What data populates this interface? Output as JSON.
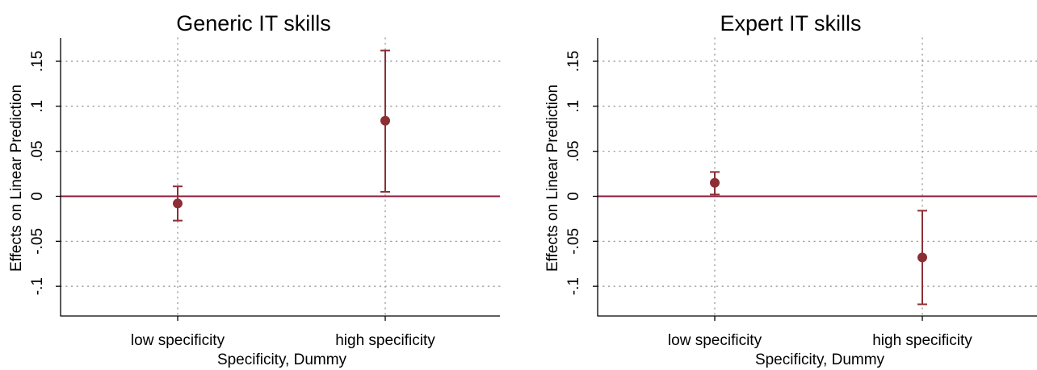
{
  "colors": {
    "marker": "#8b2f35",
    "zero_line": "#8b1a3a",
    "grid": "#8c8c8c",
    "axis": "#000000"
  },
  "chart_data": [
    {
      "type": "scatter",
      "title": "Generic IT skills",
      "xlabel": "Specificity, Dummy",
      "ylabel": "Effects on Linear Prediction",
      "categories": [
        "low specificity",
        "high specificity"
      ],
      "ytick_labels": [
        "-.1",
        "-.05",
        "0",
        ".05",
        ".1",
        ".15"
      ],
      "yticks": [
        -0.1,
        -0.05,
        0,
        0.05,
        0.1,
        0.15
      ],
      "ylim": [
        -0.133,
        0.176
      ],
      "reference_line": 0,
      "grid": true,
      "series": [
        {
          "values": [
            -0.008,
            0.084
          ],
          "ci_low": [
            -0.027,
            0.005
          ],
          "ci_high": [
            0.011,
            0.162
          ]
        }
      ]
    },
    {
      "type": "scatter",
      "title": "Expert IT skills",
      "xlabel": "Specificity, Dummy",
      "ylabel": "Effects on Linear Prediction",
      "categories": [
        "low specificity",
        "high specificity"
      ],
      "ytick_labels": [
        "-.1",
        "-.05",
        "0",
        ".05",
        ".1",
        ".15"
      ],
      "yticks": [
        -0.1,
        -0.05,
        0,
        0.05,
        0.1,
        0.15
      ],
      "ylim": [
        -0.133,
        0.176
      ],
      "reference_line": 0,
      "grid": true,
      "series": [
        {
          "values": [
            0.015,
            -0.068
          ],
          "ci_low": [
            0.002,
            -0.12
          ],
          "ci_high": [
            0.027,
            -0.016
          ]
        }
      ]
    }
  ]
}
